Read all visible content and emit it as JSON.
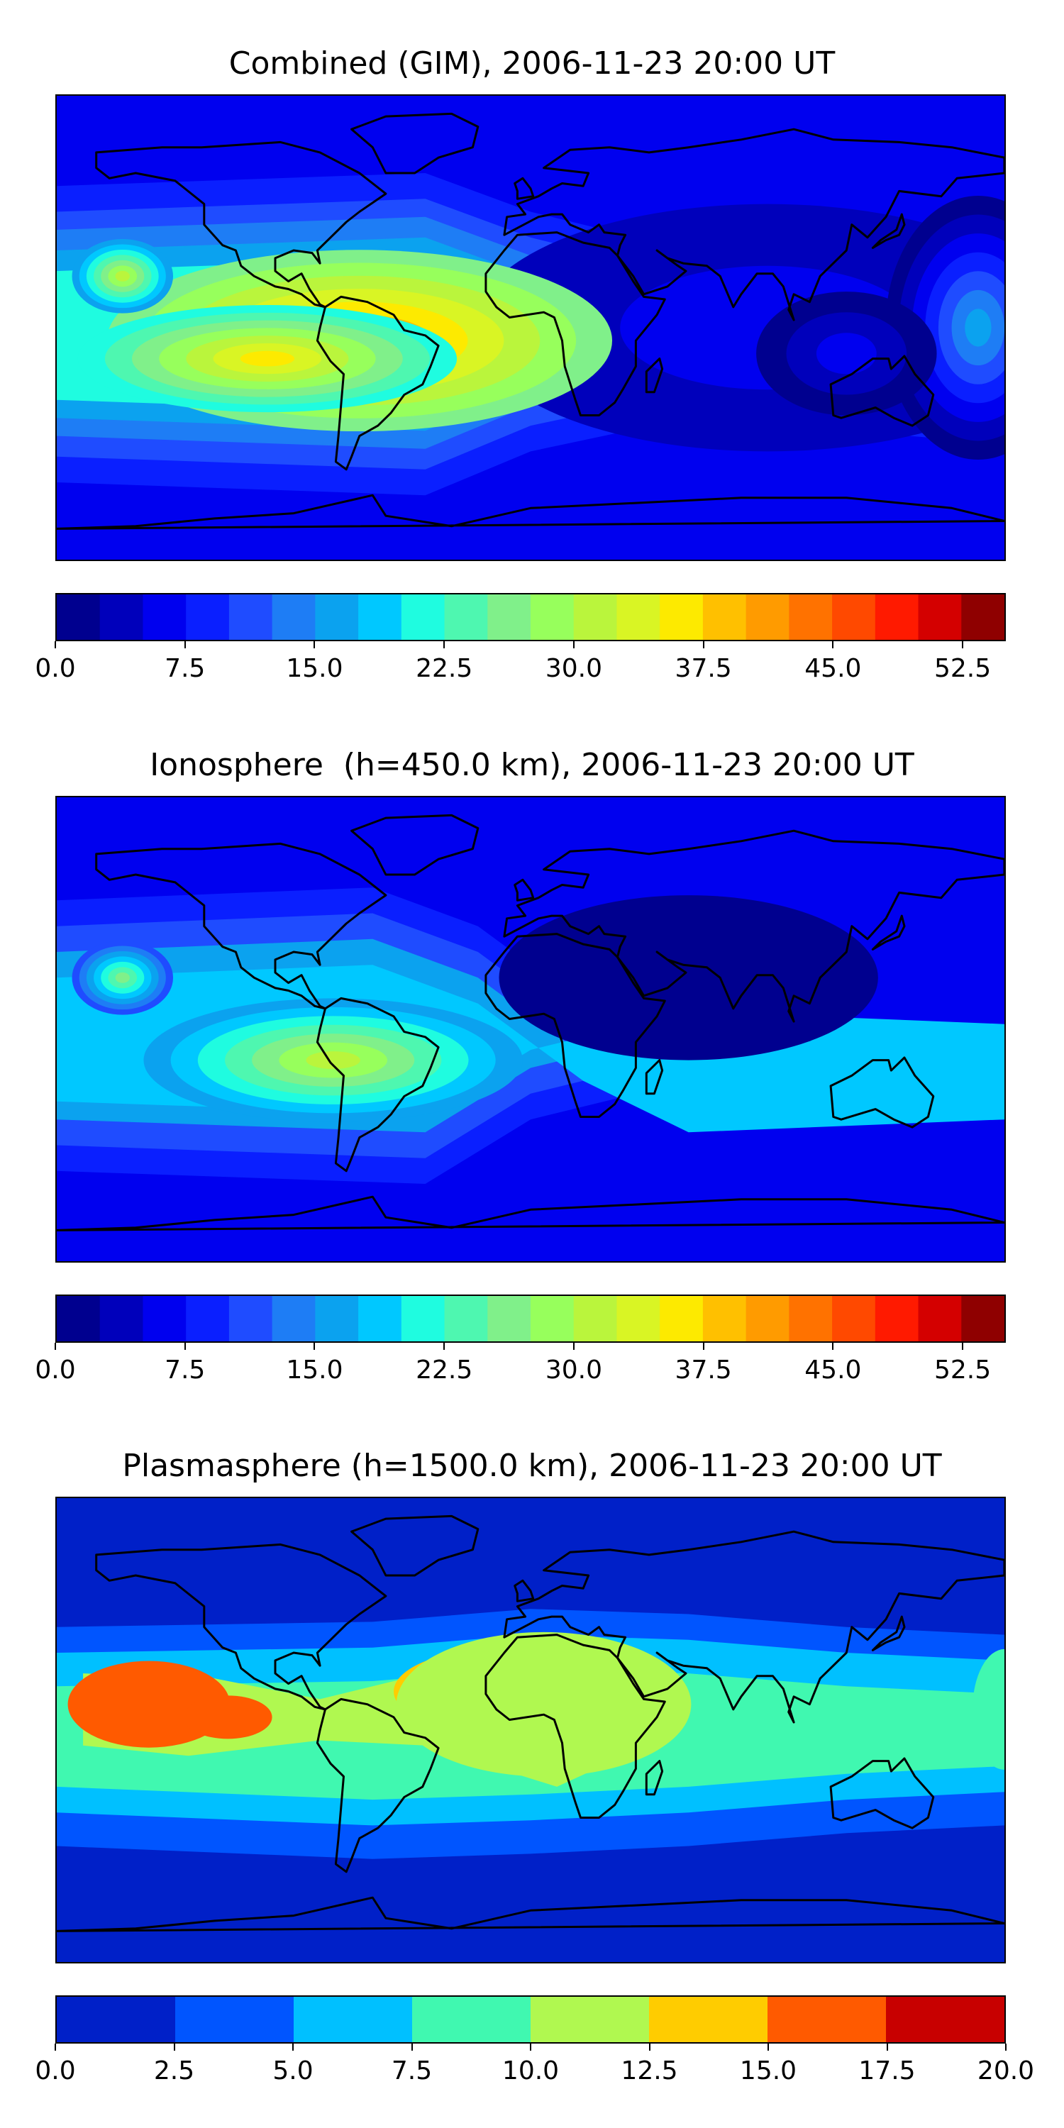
{
  "chart_data": [
    {
      "type": "heatmap",
      "title": "Combined (GIM), 2006-11-23 20:00 UT",
      "xlabel": "",
      "ylabel": "",
      "colorbar": {
        "levels": [
          0.0,
          2.5,
          5.0,
          7.5,
          10.0,
          12.5,
          15.0,
          17.5,
          20.0,
          22.5,
          25.0,
          27.5,
          30.0,
          32.5,
          35.0,
          37.5,
          40.0,
          42.5,
          45.0,
          47.5,
          50.0,
          52.5,
          55.0
        ],
        "ticks": [
          "0.0",
          "7.5",
          "15.0",
          "22.5",
          "30.0",
          "37.5",
          "45.0",
          "52.5"
        ],
        "range": [
          0,
          55
        ]
      },
      "features": [
        {
          "lon": -65,
          "lat": -5,
          "rx": 60,
          "ry": 22,
          "value": 40
        },
        {
          "lon": -100,
          "lat": -12,
          "rx": 45,
          "ry": 13,
          "value": 36
        },
        {
          "lon": -155,
          "lat": 20,
          "rx": 12,
          "ry": 9,
          "value": 30
        },
        {
          "lon": 170,
          "lat": 0,
          "rx": 22,
          "ry": 32,
          "value": 17
        },
        {
          "lon": 120,
          "lat": -10,
          "rx": 50,
          "ry": 35,
          "value": 6
        }
      ]
    },
    {
      "type": "heatmap",
      "title": "Ionosphere  (h=450.0 km), 2006-11-23 20:00 UT",
      "xlabel": "",
      "ylabel": "",
      "colorbar": {
        "levels": [
          0.0,
          2.5,
          5.0,
          7.5,
          10.0,
          12.5,
          15.0,
          17.5,
          20.0,
          22.5,
          25.0,
          27.5,
          30.0,
          32.5,
          35.0,
          37.5,
          40.0,
          42.5,
          45.0,
          47.5,
          50.0,
          52.5,
          55.0
        ],
        "ticks": [
          "0.0",
          "7.5",
          "15.0",
          "22.5",
          "30.0",
          "37.5",
          "45.0",
          "52.5"
        ],
        "range": [
          0,
          55
        ]
      },
      "features": [
        {
          "lon": -75,
          "lat": -12,
          "rx": 45,
          "ry": 15,
          "value": 30
        },
        {
          "lon": -155,
          "lat": 20,
          "rx": 12,
          "ry": 9,
          "value": 25
        },
        {
          "lon": 60,
          "lat": 20,
          "rx": 90,
          "ry": 40,
          "value": 2
        }
      ]
    },
    {
      "type": "heatmap",
      "title": "Plasmasphere (h=1500.0 km), 2006-11-23 20:00 UT",
      "xlabel": "",
      "ylabel": "",
      "colorbar": {
        "levels": [
          0.0,
          2.5,
          5.0,
          7.5,
          10.0,
          12.5,
          15.0,
          17.5,
          20.0
        ],
        "ticks": [
          "0.0",
          "2.5",
          "5.0",
          "7.5",
          "10.0",
          "12.5",
          "15.0",
          "17.5",
          "20.0"
        ],
        "range": [
          0,
          20
        ]
      },
      "features": [
        {
          "lon": -145,
          "lat": 10,
          "rx": 22,
          "ry": 12,
          "value": 15.5
        },
        {
          "lon": -115,
          "lat": 5,
          "rx": 12,
          "ry": 6,
          "value": 15.5
        },
        {
          "lon": -10,
          "lat": 15,
          "rx": 30,
          "ry": 12,
          "value": 13.5
        },
        {
          "lon": 5,
          "lat": 10,
          "rx": 40,
          "ry": 20,
          "value": 11
        }
      ]
    }
  ],
  "colors": {
    "jet22": [
      "#00008f",
      "#0000bb",
      "#0000ef",
      "#0a1fff",
      "#1f4cff",
      "#1e7df5",
      "#0ba2ef",
      "#00c8ff",
      "#1ffce0",
      "#4ef7b0",
      "#80f08a",
      "#97ff5c",
      "#baf53c",
      "#d9f524",
      "#fdea00",
      "#ffc000",
      "#ff9b00",
      "#ff7200",
      "#ff4900",
      "#ff1a00",
      "#d40000",
      "#8f0000"
    ],
    "plasma8": [
      "#0020c8",
      "#0055ff",
      "#00c0ff",
      "#40f8b0",
      "#b0f850",
      "#ffcc00",
      "#ff5a00",
      "#c80000"
    ]
  }
}
